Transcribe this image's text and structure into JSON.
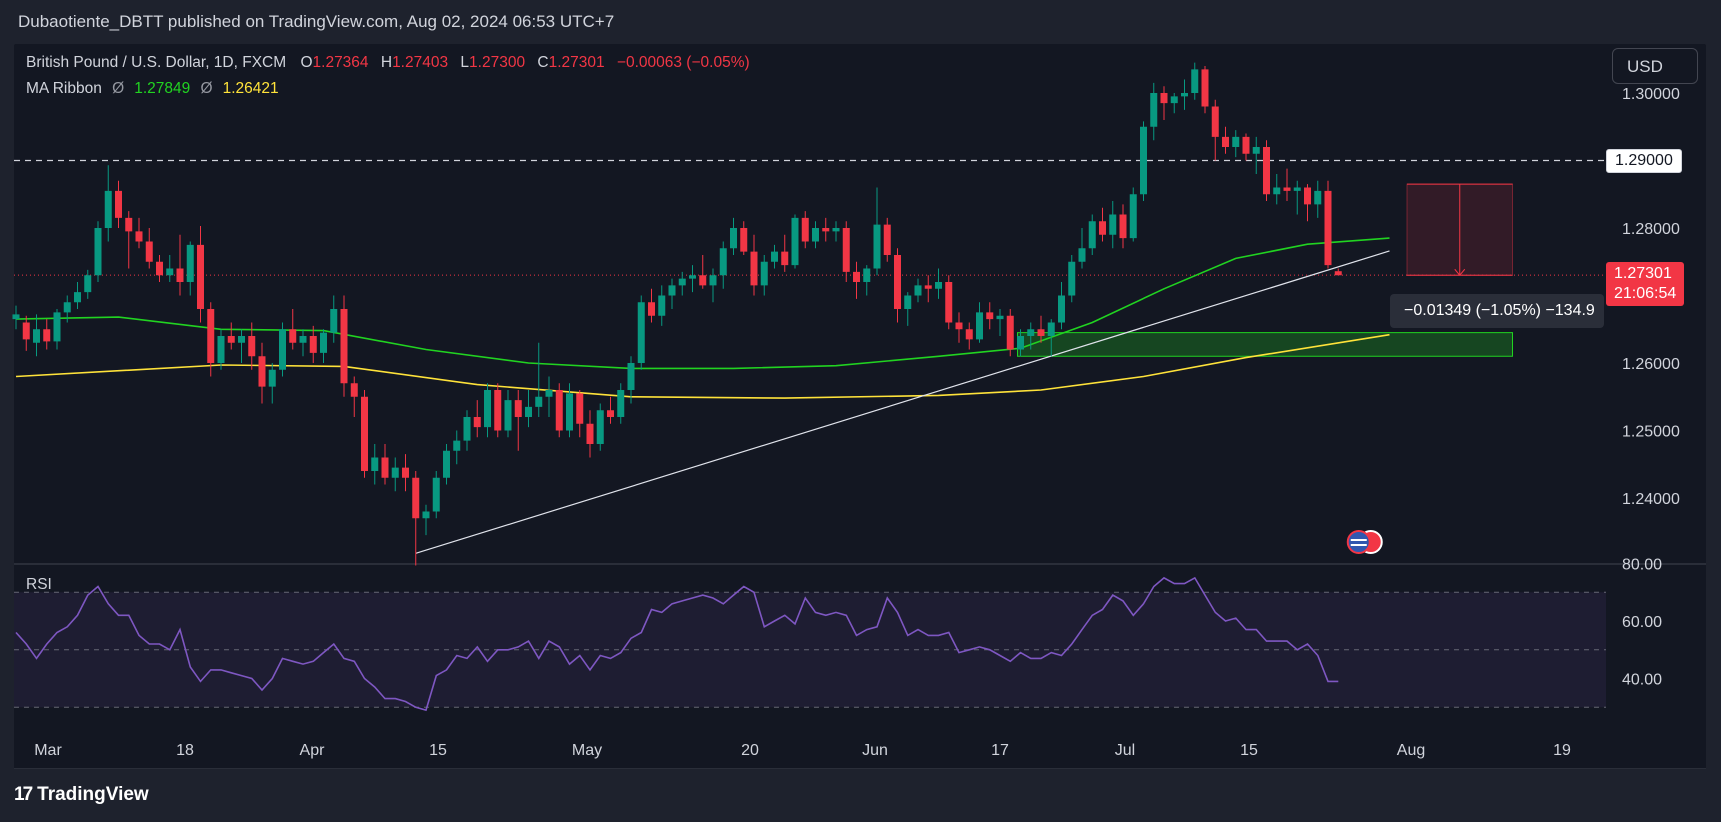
{
  "header": {
    "publish_line": "Dubaotiente_DBTT published on TradingView.com, Aug 02, 2024 06:53 UTC+7"
  },
  "legend": {
    "symbol": "British Pound / U.S. Dollar, 1D, FXCM",
    "o_label": "O",
    "o_value": "1.27364",
    "h_label": "H",
    "h_value": "1.27403",
    "l_label": "L",
    "l_value": "1.27300",
    "c_label": "C",
    "c_value": "1.27301",
    "change": "−0.00063 (−0.05%)",
    "indicator_name": "MA Ribbon",
    "ma_symbol": "Ø",
    "ma1_value": "1.27849",
    "ma2_value": "1.26421"
  },
  "currency_button": "USD",
  "price_tags": {
    "level": "1.29000",
    "last_price": "1.27301",
    "countdown": "21:06:54"
  },
  "measure_label": "−0.01349 (−1.05%) −134.9",
  "rsi": {
    "label": "RSI",
    "upper_band": 70,
    "middle_band": 50,
    "lower_band": 30
  },
  "brand": {
    "logo": "17",
    "name": "TradingView"
  },
  "colors": {
    "up": "#089981",
    "down": "#f23645",
    "ma_fast": "#21d321",
    "ma_slow": "#ffe33a",
    "rsi_line": "#7e57c2",
    "background": "#131722"
  },
  "chart_data": {
    "type": "candlestick",
    "title": "British Pound / U.S. Dollar, 1D, FXCM",
    "price_axis": {
      "ticks": [
        "1.30000",
        "1.29000",
        "1.28000",
        "1.27301",
        "1.26000",
        "1.25000",
        "1.24000"
      ],
      "range": [
        1.2318,
        1.3057
      ]
    },
    "time_axis": {
      "ticks": [
        "Mar",
        "18",
        "Apr",
        "15",
        "May",
        "20",
        "Jun",
        "17",
        "Jul",
        "15",
        "Aug",
        "19"
      ]
    },
    "candles": [
      {
        "o": 1.2665,
        "h": 1.2685,
        "l": 1.265,
        "c": 1.2672
      },
      {
        "o": 1.266,
        "h": 1.267,
        "l": 1.2618,
        "c": 1.2635
      },
      {
        "o": 1.263,
        "h": 1.2672,
        "l": 1.261,
        "c": 1.265
      },
      {
        "o": 1.265,
        "h": 1.2665,
        "l": 1.262,
        "c": 1.2632
      },
      {
        "o": 1.2632,
        "h": 1.268,
        "l": 1.262,
        "c": 1.2675
      },
      {
        "o": 1.2675,
        "h": 1.27,
        "l": 1.266,
        "c": 1.269
      },
      {
        "o": 1.269,
        "h": 1.272,
        "l": 1.268,
        "c": 1.2705
      },
      {
        "o": 1.2705,
        "h": 1.2738,
        "l": 1.2695,
        "c": 1.273
      },
      {
        "o": 1.273,
        "h": 1.281,
        "l": 1.272,
        "c": 1.28
      },
      {
        "o": 1.28,
        "h": 1.2893,
        "l": 1.278,
        "c": 1.2855
      },
      {
        "o": 1.2855,
        "h": 1.287,
        "l": 1.28,
        "c": 1.2815
      },
      {
        "o": 1.2815,
        "h": 1.2825,
        "l": 1.274,
        "c": 1.2795
      },
      {
        "o": 1.2795,
        "h": 1.2815,
        "l": 1.277,
        "c": 1.278
      },
      {
        "o": 1.278,
        "h": 1.28,
        "l": 1.274,
        "c": 1.275
      },
      {
        "o": 1.275,
        "h": 1.276,
        "l": 1.272,
        "c": 1.273
      },
      {
        "o": 1.273,
        "h": 1.276,
        "l": 1.272,
        "c": 1.274
      },
      {
        "o": 1.274,
        "h": 1.279,
        "l": 1.27,
        "c": 1.272
      },
      {
        "o": 1.272,
        "h": 1.278,
        "l": 1.27,
        "c": 1.2775
      },
      {
        "o": 1.2775,
        "h": 1.2803,
        "l": 1.266,
        "c": 1.268
      },
      {
        "o": 1.268,
        "h": 1.269,
        "l": 1.258,
        "c": 1.26
      },
      {
        "o": 1.26,
        "h": 1.265,
        "l": 1.259,
        "c": 1.264
      },
      {
        "o": 1.264,
        "h": 1.266,
        "l": 1.262,
        "c": 1.263
      },
      {
        "o": 1.263,
        "h": 1.265,
        "l": 1.26,
        "c": 1.264
      },
      {
        "o": 1.264,
        "h": 1.266,
        "l": 1.259,
        "c": 1.261
      },
      {
        "o": 1.261,
        "h": 1.263,
        "l": 1.254,
        "c": 1.2565
      },
      {
        "o": 1.2565,
        "h": 1.26,
        "l": 1.254,
        "c": 1.259
      },
      {
        "o": 1.259,
        "h": 1.266,
        "l": 1.258,
        "c": 1.265
      },
      {
        "o": 1.265,
        "h": 1.268,
        "l": 1.262,
        "c": 1.263
      },
      {
        "o": 1.263,
        "h": 1.265,
        "l": 1.261,
        "c": 1.264
      },
      {
        "o": 1.264,
        "h": 1.2655,
        "l": 1.26,
        "c": 1.2615
      },
      {
        "o": 1.2615,
        "h": 1.265,
        "l": 1.26,
        "c": 1.2645
      },
      {
        "o": 1.2645,
        "h": 1.27,
        "l": 1.263,
        "c": 1.268
      },
      {
        "o": 1.268,
        "h": 1.27,
        "l": 1.255,
        "c": 1.257
      },
      {
        "o": 1.257,
        "h": 1.258,
        "l": 1.252,
        "c": 1.255
      },
      {
        "o": 1.255,
        "h": 1.256,
        "l": 1.243,
        "c": 1.244
      },
      {
        "o": 1.244,
        "h": 1.248,
        "l": 1.242,
        "c": 1.246
      },
      {
        "o": 1.246,
        "h": 1.248,
        "l": 1.242,
        "c": 1.243
      },
      {
        "o": 1.243,
        "h": 1.246,
        "l": 1.241,
        "c": 1.2445
      },
      {
        "o": 1.2445,
        "h": 1.2465,
        "l": 1.241,
        "c": 1.243
      },
      {
        "o": 1.243,
        "h": 1.244,
        "l": 1.23,
        "c": 1.237
      },
      {
        "o": 1.237,
        "h": 1.239,
        "l": 1.2345,
        "c": 1.238
      },
      {
        "o": 1.238,
        "h": 1.244,
        "l": 1.237,
        "c": 1.243
      },
      {
        "o": 1.243,
        "h": 1.248,
        "l": 1.242,
        "c": 1.247
      },
      {
        "o": 1.247,
        "h": 1.25,
        "l": 1.245,
        "c": 1.2485
      },
      {
        "o": 1.2485,
        "h": 1.253,
        "l": 1.247,
        "c": 1.252
      },
      {
        "o": 1.252,
        "h": 1.2545,
        "l": 1.249,
        "c": 1.2505
      },
      {
        "o": 1.2505,
        "h": 1.257,
        "l": 1.249,
        "c": 1.256
      },
      {
        "o": 1.256,
        "h": 1.257,
        "l": 1.249,
        "c": 1.25
      },
      {
        "o": 1.25,
        "h": 1.256,
        "l": 1.249,
        "c": 1.2545
      },
      {
        "o": 1.2545,
        "h": 1.256,
        "l": 1.247,
        "c": 1.252
      },
      {
        "o": 1.252,
        "h": 1.256,
        "l": 1.2505,
        "c": 1.2535
      },
      {
        "o": 1.2535,
        "h": 1.263,
        "l": 1.252,
        "c": 1.255
      },
      {
        "o": 1.255,
        "h": 1.258,
        "l": 1.252,
        "c": 1.256
      },
      {
        "o": 1.256,
        "h": 1.257,
        "l": 1.249,
        "c": 1.25
      },
      {
        "o": 1.25,
        "h": 1.257,
        "l": 1.249,
        "c": 1.2555
      },
      {
        "o": 1.2555,
        "h": 1.256,
        "l": 1.249,
        "c": 1.251
      },
      {
        "o": 1.251,
        "h": 1.253,
        "l": 1.246,
        "c": 1.248
      },
      {
        "o": 1.248,
        "h": 1.254,
        "l": 1.247,
        "c": 1.253
      },
      {
        "o": 1.253,
        "h": 1.255,
        "l": 1.251,
        "c": 1.252
      },
      {
        "o": 1.252,
        "h": 1.257,
        "l": 1.251,
        "c": 1.256
      },
      {
        "o": 1.256,
        "h": 1.261,
        "l": 1.254,
        "c": 1.26
      },
      {
        "o": 1.26,
        "h": 1.27,
        "l": 1.259,
        "c": 1.269
      },
      {
        "o": 1.269,
        "h": 1.271,
        "l": 1.266,
        "c": 1.267
      },
      {
        "o": 1.267,
        "h": 1.2715,
        "l": 1.2655,
        "c": 1.27
      },
      {
        "o": 1.27,
        "h": 1.2725,
        "l": 1.268,
        "c": 1.2715
      },
      {
        "o": 1.2715,
        "h": 1.2735,
        "l": 1.27,
        "c": 1.2725
      },
      {
        "o": 1.2725,
        "h": 1.2745,
        "l": 1.2705,
        "c": 1.273
      },
      {
        "o": 1.273,
        "h": 1.276,
        "l": 1.271,
        "c": 1.2715
      },
      {
        "o": 1.2715,
        "h": 1.274,
        "l": 1.269,
        "c": 1.273
      },
      {
        "o": 1.273,
        "h": 1.278,
        "l": 1.271,
        "c": 1.277
      },
      {
        "o": 1.277,
        "h": 1.2815,
        "l": 1.276,
        "c": 1.28
      },
      {
        "o": 1.28,
        "h": 1.281,
        "l": 1.276,
        "c": 1.2765
      },
      {
        "o": 1.2765,
        "h": 1.279,
        "l": 1.27,
        "c": 1.2715
      },
      {
        "o": 1.2715,
        "h": 1.276,
        "l": 1.27,
        "c": 1.275
      },
      {
        "o": 1.275,
        "h": 1.2775,
        "l": 1.274,
        "c": 1.2765
      },
      {
        "o": 1.2765,
        "h": 1.279,
        "l": 1.2735,
        "c": 1.2745
      },
      {
        "o": 1.2745,
        "h": 1.282,
        "l": 1.274,
        "c": 1.2815
      },
      {
        "o": 1.2815,
        "h": 1.2825,
        "l": 1.277,
        "c": 1.278
      },
      {
        "o": 1.278,
        "h": 1.281,
        "l": 1.277,
        "c": 1.28
      },
      {
        "o": 1.28,
        "h": 1.2815,
        "l": 1.278,
        "c": 1.2795
      },
      {
        "o": 1.2795,
        "h": 1.281,
        "l": 1.278,
        "c": 1.28
      },
      {
        "o": 1.28,
        "h": 1.281,
        "l": 1.272,
        "c": 1.2735
      },
      {
        "o": 1.2735,
        "h": 1.275,
        "l": 1.2695,
        "c": 1.272
      },
      {
        "o": 1.272,
        "h": 1.2745,
        "l": 1.27,
        "c": 1.274
      },
      {
        "o": 1.274,
        "h": 1.286,
        "l": 1.273,
        "c": 1.2805
      },
      {
        "o": 1.2805,
        "h": 1.2815,
        "l": 1.275,
        "c": 1.276
      },
      {
        "o": 1.276,
        "h": 1.277,
        "l": 1.266,
        "c": 1.268
      },
      {
        "o": 1.268,
        "h": 1.2705,
        "l": 1.2655,
        "c": 1.27
      },
      {
        "o": 1.27,
        "h": 1.2725,
        "l": 1.269,
        "c": 1.2715
      },
      {
        "o": 1.2715,
        "h": 1.273,
        "l": 1.269,
        "c": 1.271
      },
      {
        "o": 1.271,
        "h": 1.274,
        "l": 1.2695,
        "c": 1.272
      },
      {
        "o": 1.272,
        "h": 1.273,
        "l": 1.265,
        "c": 1.266
      },
      {
        "o": 1.266,
        "h": 1.2675,
        "l": 1.263,
        "c": 1.265
      },
      {
        "o": 1.265,
        "h": 1.266,
        "l": 1.262,
        "c": 1.2635
      },
      {
        "o": 1.2635,
        "h": 1.269,
        "l": 1.263,
        "c": 1.2675
      },
      {
        "o": 1.2675,
        "h": 1.269,
        "l": 1.265,
        "c": 1.2665
      },
      {
        "o": 1.2665,
        "h": 1.268,
        "l": 1.264,
        "c": 1.267
      },
      {
        "o": 1.267,
        "h": 1.268,
        "l": 1.261,
        "c": 1.262
      },
      {
        "o": 1.262,
        "h": 1.265,
        "l": 1.261,
        "c": 1.264
      },
      {
        "o": 1.264,
        "h": 1.266,
        "l": 1.262,
        "c": 1.265
      },
      {
        "o": 1.265,
        "h": 1.267,
        "l": 1.263,
        "c": 1.264
      },
      {
        "o": 1.264,
        "h": 1.2665,
        "l": 1.261,
        "c": 1.266
      },
      {
        "o": 1.266,
        "h": 1.272,
        "l": 1.265,
        "c": 1.27
      },
      {
        "o": 1.27,
        "h": 1.276,
        "l": 1.269,
        "c": 1.275
      },
      {
        "o": 1.275,
        "h": 1.28,
        "l": 1.274,
        "c": 1.277
      },
      {
        "o": 1.277,
        "h": 1.282,
        "l": 1.276,
        "c": 1.281
      },
      {
        "o": 1.281,
        "h": 1.283,
        "l": 1.278,
        "c": 1.279
      },
      {
        "o": 1.279,
        "h": 1.284,
        "l": 1.277,
        "c": 1.282
      },
      {
        "o": 1.282,
        "h": 1.2835,
        "l": 1.277,
        "c": 1.2785
      },
      {
        "o": 1.2785,
        "h": 1.286,
        "l": 1.278,
        "c": 1.285
      },
      {
        "o": 1.285,
        "h": 1.2958,
        "l": 1.284,
        "c": 1.295
      },
      {
        "o": 1.295,
        "h": 1.3015,
        "l": 1.293,
        "c": 1.3
      },
      {
        "o": 1.3,
        "h": 1.301,
        "l": 1.296,
        "c": 1.2985
      },
      {
        "o": 1.2985,
        "h": 1.3,
        "l": 1.297,
        "c": 1.2995
      },
      {
        "o": 1.2995,
        "h": 1.302,
        "l": 1.2975,
        "c": 1.3
      },
      {
        "o": 1.3,
        "h": 1.3045,
        "l": 1.299,
        "c": 1.3035
      },
      {
        "o": 1.3035,
        "h": 1.304,
        "l": 1.297,
        "c": 1.298
      },
      {
        "o": 1.298,
        "h": 1.299,
        "l": 1.29,
        "c": 1.2935
      },
      {
        "o": 1.2935,
        "h": 1.295,
        "l": 1.291,
        "c": 1.292
      },
      {
        "o": 1.292,
        "h": 1.2945,
        "l": 1.2905,
        "c": 1.2935
      },
      {
        "o": 1.2935,
        "h": 1.294,
        "l": 1.29,
        "c": 1.291
      },
      {
        "o": 1.291,
        "h": 1.2935,
        "l": 1.288,
        "c": 1.292
      },
      {
        "o": 1.292,
        "h": 1.293,
        "l": 1.284,
        "c": 1.285
      },
      {
        "o": 1.285,
        "h": 1.288,
        "l": 1.2835,
        "c": 1.286
      },
      {
        "o": 1.286,
        "h": 1.2888,
        "l": 1.284,
        "c": 1.2855
      },
      {
        "o": 1.2855,
        "h": 1.287,
        "l": 1.282,
        "c": 1.286
      },
      {
        "o": 1.286,
        "h": 1.2865,
        "l": 1.281,
        "c": 1.2835
      },
      {
        "o": 1.2835,
        "h": 1.287,
        "l": 1.2815,
        "c": 1.2855
      },
      {
        "o": 1.2855,
        "h": 1.287,
        "l": 1.274,
        "c": 1.2745
      },
      {
        "o": 1.2736,
        "h": 1.274,
        "l": 1.273,
        "c": 1.273
      }
    ],
    "series": [
      {
        "name": "MA Ribbon 1.27849",
        "color": "#21d321",
        "values_at": [
          [
            0,
            1.2665
          ],
          [
            10,
            1.2668
          ],
          [
            20,
            1.265
          ],
          [
            30,
            1.2648
          ],
          [
            40,
            1.262
          ],
          [
            50,
            1.26
          ],
          [
            60,
            1.2592
          ],
          [
            70,
            1.2592
          ],
          [
            80,
            1.2596
          ],
          [
            90,
            1.261
          ],
          [
            98,
            1.2622
          ],
          [
            105,
            1.266
          ],
          [
            112,
            1.271
          ],
          [
            119,
            1.2755
          ],
          [
            126,
            1.2776
          ],
          [
            134,
            1.2785
          ]
        ]
      },
      {
        "name": "MA Ribbon 1.26421",
        "color": "#ffe33a",
        "values_at": [
          [
            0,
            1.258
          ],
          [
            20,
            1.2597
          ],
          [
            32,
            1.2595
          ],
          [
            45,
            1.2568
          ],
          [
            60,
            1.255
          ],
          [
            75,
            1.2548
          ],
          [
            90,
            1.2552
          ],
          [
            100,
            1.256
          ],
          [
            110,
            1.258
          ],
          [
            120,
            1.2608
          ],
          [
            134,
            1.2642
          ]
        ]
      }
    ],
    "rsi_values": [
      56,
      52,
      47,
      52,
      56,
      58,
      62,
      69,
      72,
      66,
      62,
      62,
      55,
      52,
      52,
      50,
      57,
      44,
      39,
      43,
      43,
      42,
      41,
      40,
      36,
      40,
      47,
      46,
      45,
      46,
      49,
      52,
      47,
      46,
      40,
      37,
      33,
      33,
      32,
      30,
      29,
      41,
      43,
      48,
      47,
      51,
      46,
      50,
      50,
      51,
      53,
      47,
      53,
      51,
      45,
      48,
      43,
      48,
      47,
      49,
      54,
      56,
      64,
      63,
      66,
      67,
      68,
      69,
      68,
      66,
      69,
      72,
      70,
      58,
      60,
      62,
      59,
      68,
      63,
      62,
      63,
      62,
      55,
      57,
      58,
      68,
      63,
      55,
      57,
      55,
      55,
      56,
      49,
      50,
      51,
      50,
      48,
      46,
      49,
      47,
      47,
      49,
      48,
      52,
      57,
      62,
      64,
      69,
      67,
      62,
      66,
      72,
      75,
      73,
      73,
      75,
      69,
      63,
      60,
      61,
      57,
      57,
      53,
      53,
      53,
      50,
      52,
      48,
      39,
      39
    ],
    "levels": [
      {
        "type": "horizontal",
        "value": 1.29,
        "style": "dashed",
        "label": "1.29000"
      },
      {
        "type": "horizontal",
        "value": 1.27301,
        "style": "dotted"
      }
    ],
    "trendline": {
      "from": {
        "bar": 39,
        "price": 1.2318
      },
      "to": {
        "bar": 134,
        "price": 1.2766
      }
    },
    "zones": [
      {
        "type": "demand_zone",
        "from_bar": 98,
        "to_bar": 146,
        "top": 1.2645,
        "bottom": 1.261,
        "color": "#21d321"
      },
      {
        "type": "price_range_measure",
        "from_bar": 136,
        "to_bar": 146,
        "top": 1.2865,
        "bottom": 1.273,
        "color": "#f23645"
      }
    ]
  }
}
